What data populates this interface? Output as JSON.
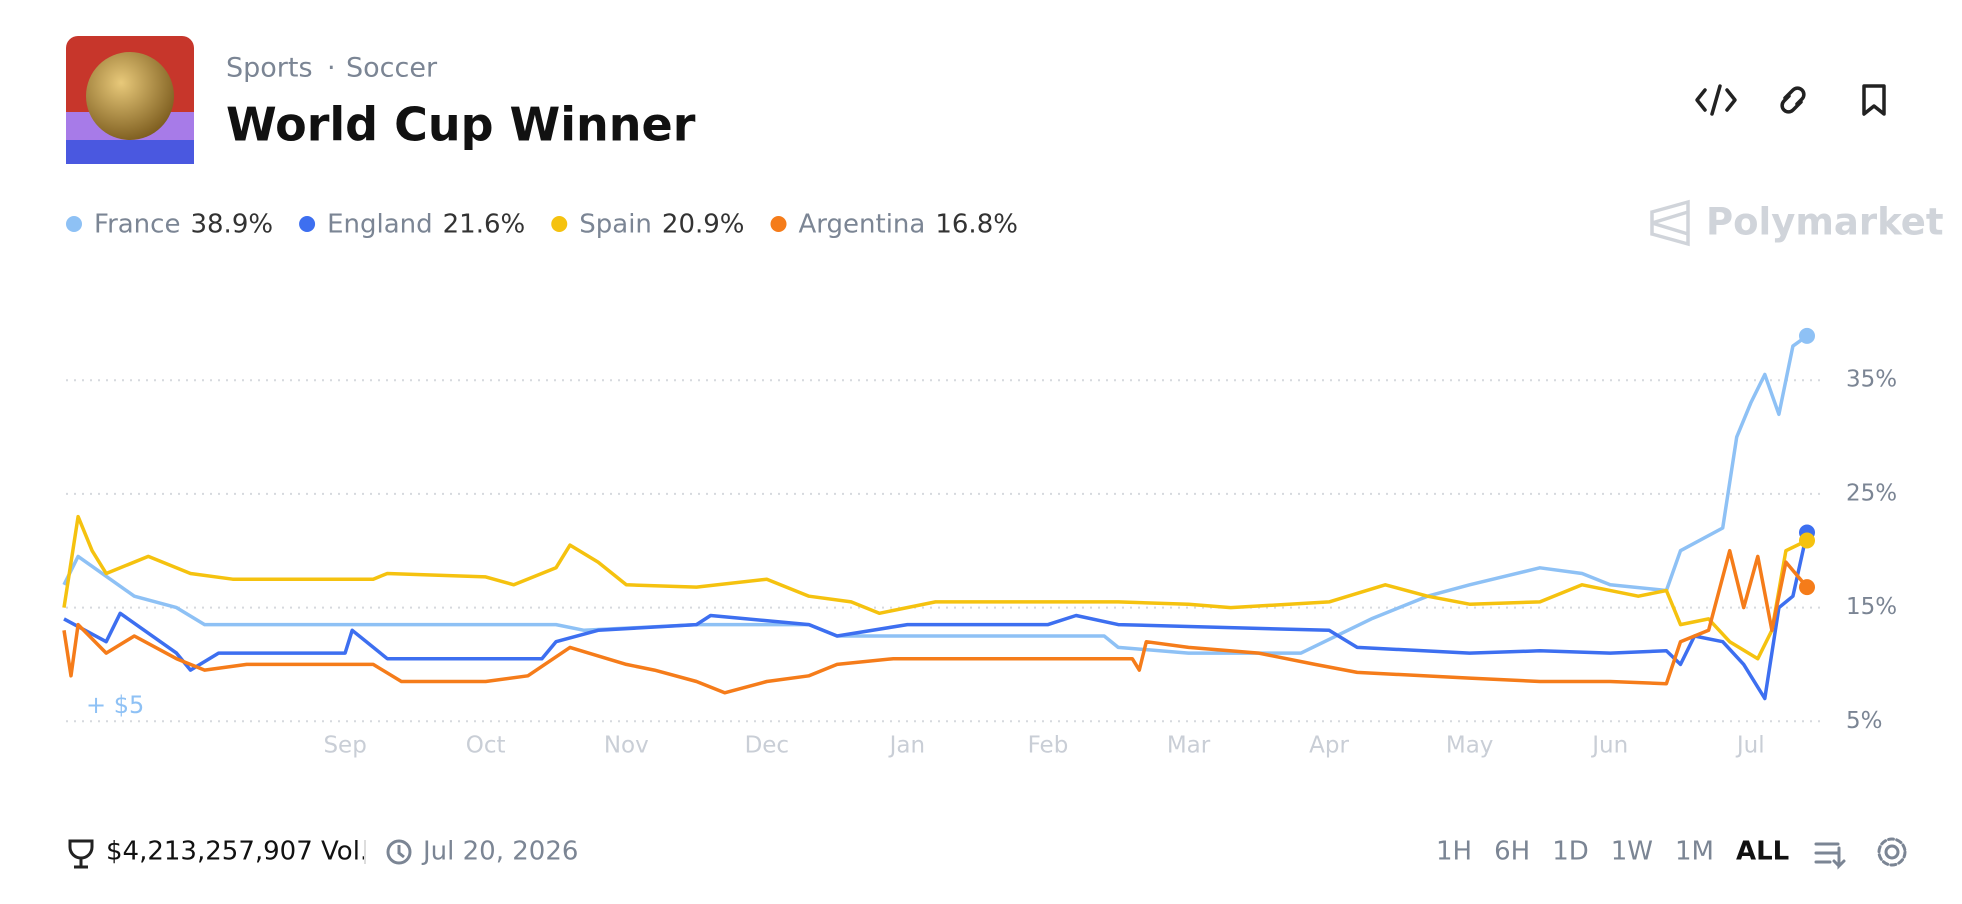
{
  "header": {
    "category": "Sports",
    "subcategory": "Soccer",
    "title": "World Cup Winner"
  },
  "brand": "Polymarket",
  "chart_data": {
    "type": "line",
    "annotation": "+ $5",
    "xlim": [
      0,
      12.4
    ],
    "xticks": [
      {
        "value": 2,
        "label": "Sep"
      },
      {
        "value": 3,
        "label": "Oct"
      },
      {
        "value": 4,
        "label": "Nov"
      },
      {
        "value": 5,
        "label": "Dec"
      },
      {
        "value": 6,
        "label": "Jan"
      },
      {
        "value": 7,
        "label": "Feb"
      },
      {
        "value": 8,
        "label": "Mar"
      },
      {
        "value": 9,
        "label": "Apr"
      },
      {
        "value": 10,
        "label": "May"
      },
      {
        "value": 11,
        "label": "Jun"
      },
      {
        "value": 12,
        "label": "Jul"
      }
    ],
    "ylim": [
      3,
      41
    ],
    "yticks": [
      {
        "value": 5,
        "label": "5%"
      },
      {
        "value": 15,
        "label": "15%"
      },
      {
        "value": 25,
        "label": "25%"
      },
      {
        "value": 35,
        "label": "35%"
      }
    ],
    "grid": true,
    "series": [
      {
        "name": "France",
        "color": "#8ec1f5",
        "latest": {
          "value": 38.9,
          "label": "38.9%"
        },
        "x": [
          0,
          0.1,
          0.5,
          0.8,
          1.0,
          3.5,
          3.7,
          4.5,
          5.3,
          5.5,
          7.4,
          7.5,
          8.0,
          8.8,
          9.3,
          9.7,
          10.0,
          10.5,
          10.8,
          11.0,
          11.4,
          11.5,
          11.8,
          11.9,
          12.0,
          12.1,
          12.2,
          12.3,
          12.4
        ],
        "values": [
          17,
          19.5,
          16,
          15,
          13.5,
          13.5,
          13,
          13.5,
          13.5,
          12.5,
          12.5,
          11.5,
          11,
          11,
          14,
          16,
          17,
          18.5,
          18,
          17,
          16.5,
          20,
          22,
          30,
          33,
          35.5,
          32,
          38,
          38.9
        ]
      },
      {
        "name": "England",
        "color": "#3d6ff0",
        "latest": {
          "value": 21.6,
          "label": "21.6%"
        },
        "x": [
          0,
          0.3,
          0.4,
          0.8,
          0.9,
          1.1,
          2.0,
          2.05,
          2.3,
          3.4,
          3.5,
          3.8,
          4.5,
          4.6,
          5.3,
          5.5,
          6.0,
          7.0,
          7.2,
          7.5,
          9.0,
          9.2,
          10.0,
          10.5,
          11.0,
          11.4,
          11.5,
          11.6,
          11.8,
          11.95,
          12.1,
          12.2,
          12.3,
          12.4
        ],
        "values": [
          14,
          12,
          14.5,
          11,
          9.5,
          11,
          11,
          13,
          10.5,
          10.5,
          12,
          13,
          13.5,
          14.3,
          13.5,
          12.5,
          13.5,
          13.5,
          14.3,
          13.5,
          13,
          11.5,
          11,
          11.2,
          11,
          11.2,
          10,
          12.5,
          12,
          10,
          7,
          15,
          16,
          21.6
        ]
      },
      {
        "name": "Spain",
        "color": "#f5c20f",
        "latest": {
          "value": 20.9,
          "label": "20.9%"
        },
        "x": [
          0,
          0.1,
          0.2,
          0.3,
          0.6,
          0.9,
          1.2,
          2.2,
          2.3,
          3.0,
          3.2,
          3.5,
          3.6,
          3.8,
          4.0,
          4.5,
          5.0,
          5.3,
          5.6,
          5.8,
          6.2,
          7.5,
          8.0,
          8.3,
          9.0,
          9.4,
          9.7,
          10.0,
          10.5,
          10.8,
          11.2,
          11.4,
          11.5,
          11.7,
          11.85,
          12.05,
          12.15,
          12.25,
          12.4
        ],
        "values": [
          15,
          23,
          20,
          18,
          19.5,
          18,
          17.5,
          17.5,
          18,
          17.7,
          17,
          18.5,
          20.5,
          19,
          17,
          16.8,
          17.5,
          16,
          15.5,
          14.5,
          15.5,
          15.5,
          15.3,
          15,
          15.5,
          17,
          16,
          15.3,
          15.5,
          17,
          16,
          16.5,
          13.5,
          14,
          12,
          10.5,
          13,
          20,
          20.9
        ]
      },
      {
        "name": "Argentina",
        "color": "#f57c1a",
        "latest": {
          "value": 16.8,
          "label": "16.8%"
        },
        "x": [
          0,
          0.05,
          0.1,
          0.3,
          0.5,
          0.8,
          1.0,
          1.3,
          2.2,
          2.4,
          3.0,
          3.3,
          3.6,
          4.0,
          4.2,
          4.5,
          4.7,
          5.0,
          5.3,
          5.5,
          5.9,
          7.6,
          7.65,
          7.7,
          8.0,
          8.5,
          8.9,
          9.2,
          10.0,
          10.5,
          11.0,
          11.4,
          11.5,
          11.7,
          11.85,
          11.95,
          12.05,
          12.15,
          12.25,
          12.4
        ],
        "values": [
          13,
          9,
          13.5,
          11,
          12.5,
          10.5,
          9.5,
          10,
          10,
          8.5,
          8.5,
          9,
          11.5,
          10,
          9.5,
          8.5,
          7.5,
          8.5,
          9,
          10,
          10.5,
          10.5,
          9.5,
          12,
          11.5,
          11,
          10,
          9.3,
          8.8,
          8.5,
          8.5,
          8.3,
          12,
          13,
          20,
          15,
          19.5,
          13,
          19,
          16.8
        ]
      }
    ]
  },
  "footer": {
    "volume": "$4,213,257,907 Vol.",
    "end_date": "Jul 20, 2026",
    "ranges": [
      "1H",
      "6H",
      "1D",
      "1W",
      "1M",
      "ALL"
    ]
  }
}
